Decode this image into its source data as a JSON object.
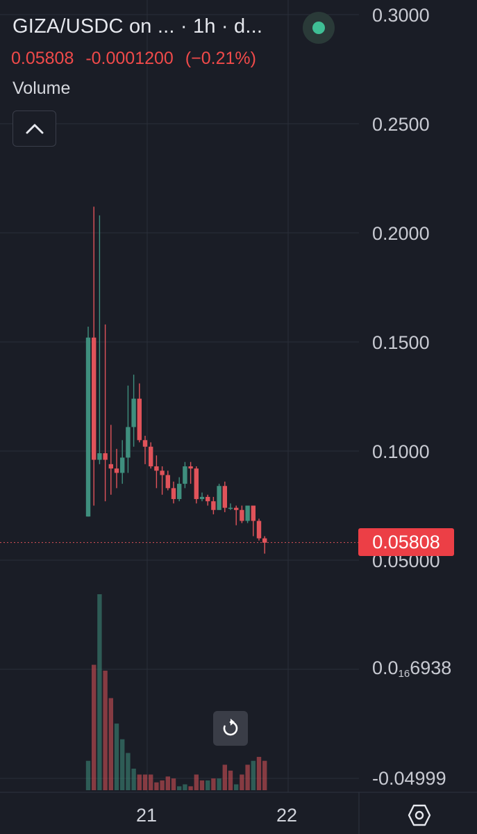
{
  "header": {
    "title": "GIZA/USDC on ... · 1h · d...",
    "last_price": "0.05808",
    "change": "-0.0001200",
    "change_pct": "(−0.21%)",
    "volume_label": "Volume"
  },
  "price_axis": {
    "ticks": [
      "0.3000",
      "0.2500",
      "0.2000",
      "0.1500",
      "0.1000",
      "0.05000"
    ],
    "current_tag": "0.05808"
  },
  "volume_axis": {
    "top_prefix": "0.0",
    "top_sub": "16",
    "top_suffix": "6938",
    "bottom": "-0.04999"
  },
  "x_axis": {
    "ticks": [
      "21",
      "22"
    ]
  },
  "colors": {
    "up": "#3f8f7e",
    "down": "#e0535a",
    "background": "#1a1d26",
    "grid": "#2a2e39"
  },
  "icons": {
    "collapse": "chevron-up-icon",
    "reset": "reset-rotate-icon",
    "settings": "settings-hexagon-icon",
    "status": "status-dot-icon"
  },
  "chart_data": {
    "type": "candlestick",
    "title": "GIZA/USDC on ... · 1h · d...",
    "interval": "1h",
    "ylim": [
      0.05,
      0.3
    ],
    "x_ticks": [
      "21",
      "22"
    ],
    "last_price": 0.05808,
    "candles": [
      {
        "o": 0.07,
        "h": 0.157,
        "l": 0.07,
        "c": 0.152
      },
      {
        "o": 0.152,
        "h": 0.212,
        "l": 0.075,
        "c": 0.096
      },
      {
        "o": 0.096,
        "h": 0.208,
        "l": 0.094,
        "c": 0.099
      },
      {
        "o": 0.099,
        "h": 0.158,
        "l": 0.077,
        "c": 0.096
      },
      {
        "o": 0.094,
        "h": 0.112,
        "l": 0.08,
        "c": 0.092
      },
      {
        "o": 0.092,
        "h": 0.101,
        "l": 0.083,
        "c": 0.09
      },
      {
        "o": 0.09,
        "h": 0.105,
        "l": 0.085,
        "c": 0.097
      },
      {
        "o": 0.097,
        "h": 0.13,
        "l": 0.09,
        "c": 0.111
      },
      {
        "o": 0.111,
        "h": 0.135,
        "l": 0.102,
        "c": 0.124
      },
      {
        "o": 0.124,
        "h": 0.131,
        "l": 0.104,
        "c": 0.105
      },
      {
        "o": 0.105,
        "h": 0.107,
        "l": 0.094,
        "c": 0.102
      },
      {
        "o": 0.102,
        "h": 0.104,
        "l": 0.092,
        "c": 0.093
      },
      {
        "o": 0.093,
        "h": 0.098,
        "l": 0.083,
        "c": 0.091
      },
      {
        "o": 0.091,
        "h": 0.093,
        "l": 0.08,
        "c": 0.089
      },
      {
        "o": 0.089,
        "h": 0.091,
        "l": 0.082,
        "c": 0.083
      },
      {
        "o": 0.083,
        "h": 0.086,
        "l": 0.076,
        "c": 0.078
      },
      {
        "o": 0.078,
        "h": 0.088,
        "l": 0.077,
        "c": 0.085
      },
      {
        "o": 0.085,
        "h": 0.095,
        "l": 0.083,
        "c": 0.093
      },
      {
        "o": 0.093,
        "h": 0.095,
        "l": 0.085,
        "c": 0.092
      },
      {
        "o": 0.092,
        "h": 0.093,
        "l": 0.076,
        "c": 0.078
      },
      {
        "o": 0.078,
        "h": 0.081,
        "l": 0.077,
        "c": 0.079
      },
      {
        "o": 0.079,
        "h": 0.08,
        "l": 0.075,
        "c": 0.077
      },
      {
        "o": 0.077,
        "h": 0.079,
        "l": 0.071,
        "c": 0.073
      },
      {
        "o": 0.073,
        "h": 0.085,
        "l": 0.073,
        "c": 0.084
      },
      {
        "o": 0.084,
        "h": 0.086,
        "l": 0.072,
        "c": 0.074
      },
      {
        "o": 0.074,
        "h": 0.076,
        "l": 0.073,
        "c": 0.074
      },
      {
        "o": 0.074,
        "h": 0.075,
        "l": 0.066,
        "c": 0.073
      },
      {
        "o": 0.073,
        "h": 0.075,
        "l": 0.067,
        "c": 0.068
      },
      {
        "o": 0.068,
        "h": 0.075,
        "l": 0.067,
        "c": 0.075
      },
      {
        "o": 0.075,
        "h": 0.075,
        "l": 0.061,
        "c": 0.068
      },
      {
        "o": 0.068,
        "h": 0.069,
        "l": 0.059,
        "c": 0.06
      },
      {
        "o": 0.06,
        "h": 0.061,
        "l": 0.053,
        "c": 0.058
      }
    ],
    "volume": [
      {
        "v": 0.15,
        "up": true
      },
      {
        "v": 0.64,
        "up": false
      },
      {
        "v": 1.0,
        "up": true
      },
      {
        "v": 0.61,
        "up": false
      },
      {
        "v": 0.47,
        "up": false
      },
      {
        "v": 0.34,
        "up": true
      },
      {
        "v": 0.26,
        "up": true
      },
      {
        "v": 0.19,
        "up": true
      },
      {
        "v": 0.11,
        "up": true
      },
      {
        "v": 0.08,
        "up": false
      },
      {
        "v": 0.08,
        "up": false
      },
      {
        "v": 0.08,
        "up": false
      },
      {
        "v": 0.04,
        "up": false
      },
      {
        "v": 0.05,
        "up": false
      },
      {
        "v": 0.07,
        "up": false
      },
      {
        "v": 0.06,
        "up": false
      },
      {
        "v": 0.02,
        "up": true
      },
      {
        "v": 0.03,
        "up": true
      },
      {
        "v": 0.02,
        "up": false
      },
      {
        "v": 0.08,
        "up": false
      },
      {
        "v": 0.05,
        "up": false
      },
      {
        "v": 0.05,
        "up": true
      },
      {
        "v": 0.06,
        "up": false
      },
      {
        "v": 0.06,
        "up": true
      },
      {
        "v": 0.13,
        "up": false
      },
      {
        "v": 0.1,
        "up": false
      },
      {
        "v": 0.03,
        "up": true
      },
      {
        "v": 0.08,
        "up": false
      },
      {
        "v": 0.13,
        "up": false
      },
      {
        "v": 0.15,
        "up": true
      },
      {
        "v": 0.17,
        "up": false
      },
      {
        "v": 0.15,
        "up": false
      }
    ]
  }
}
